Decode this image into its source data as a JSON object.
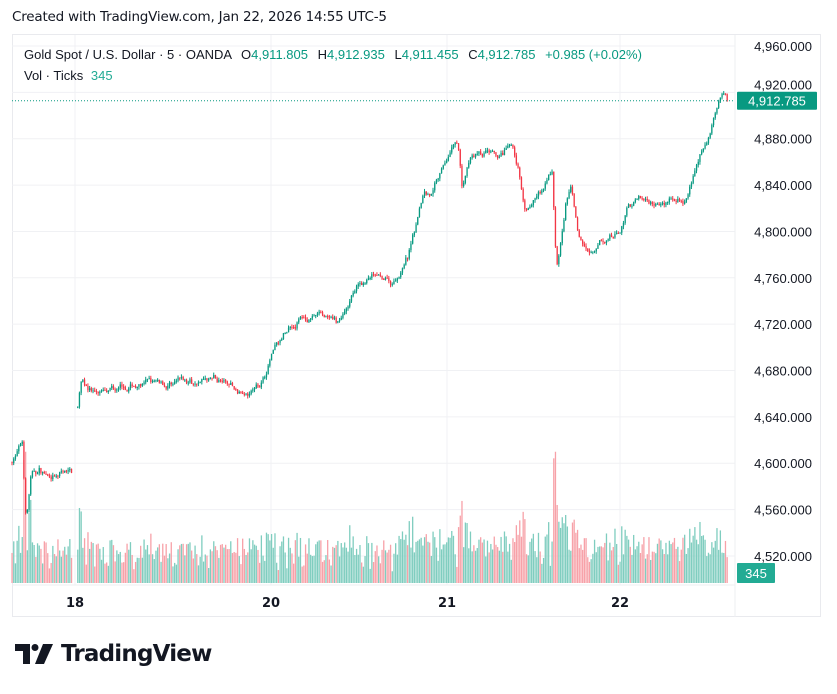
{
  "header": {
    "created_text": "Created with TradingView.com, Jan 22, 2026 14:55 UTC-5"
  },
  "legend": {
    "symbol": "Gold Spot / U.S. Dollar · 5 · OANDA",
    "o_label": "O",
    "o_value": "4,911.805",
    "h_label": "H",
    "h_value": "4,912.935",
    "l_label": "L",
    "l_value": "4,911.455",
    "c_label": "C",
    "c_value": "4,912.785",
    "change": "+0.985 (+0.02%)",
    "vol_label": "Vol · Ticks",
    "vol_value": "345"
  },
  "logo": {
    "text": "TradingView"
  },
  "colors": {
    "up": "#089981",
    "down": "#f23645",
    "vol_up": "#7fcdbf",
    "vol_down": "#f7a1a8",
    "grid": "#f0f1f4",
    "last_price_bg": "#089981",
    "last_vol_bg": "#22ab94"
  },
  "chart_data": {
    "type": "candlestick",
    "symbol": "Gold Spot / U.S. Dollar",
    "interval": "5",
    "y_ticks": [
      "4,520.000",
      "4,560.000",
      "4,600.000",
      "4,640.000",
      "4,680.000",
      "4,720.000",
      "4,760.000",
      "4,800.000",
      "4,840.000",
      "4,880.000",
      "4,920.000",
      "4,960.000"
    ],
    "y_tick_values": [
      4520,
      4560,
      4600,
      4640,
      4680,
      4720,
      4760,
      4800,
      4840,
      4880,
      4920,
      4960
    ],
    "ylim": [
      4500,
      4975
    ],
    "x_ticks": [
      {
        "label": "18",
        "time": "2026-01-18T18:00"
      },
      {
        "label": "20",
        "time": "2026-01-20T00:00"
      },
      {
        "label": "21",
        "time": "2026-01-21T00:00"
      },
      {
        "label": "22",
        "time": "2026-01-22T00:00"
      }
    ],
    "grid": true,
    "last_price": 4912.785,
    "last_price_label": "4,912.785",
    "last_volume": 345,
    "last_volume_label": "345",
    "price_path_approx": [
      [
        "2026-01-16T09:00",
        4601
      ],
      [
        "2026-01-16T10:20",
        4616
      ],
      [
        "2026-01-16T10:50",
        4551
      ],
      [
        "2026-01-16T11:30",
        4590
      ],
      [
        "2026-01-16T12:40",
        4594
      ],
      [
        "2026-01-16T14:40",
        4585
      ],
      [
        "2026-01-16T16:55",
        4594
      ],
      [
        "2026-01-18T18:25",
        4648
      ],
      [
        "2026-01-18T19:00",
        4674
      ],
      [
        "2026-01-18T21:20",
        4659
      ],
      [
        "2026-01-19T02:40",
        4667
      ],
      [
        "2026-01-19T10:10",
        4669
      ],
      [
        "2026-01-19T15:30",
        4674
      ],
      [
        "2026-01-19T19:20",
        4661
      ],
      [
        "2026-01-19T22:40",
        4672
      ],
      [
        "2026-01-20T00:30",
        4702
      ],
      [
        "2026-01-20T04:00",
        4724
      ],
      [
        "2026-01-20T06:40",
        4728
      ],
      [
        "2026-01-20T09:10",
        4719
      ],
      [
        "2026-01-20T10:50",
        4745
      ],
      [
        "2026-01-20T13:50",
        4762
      ],
      [
        "2026-01-20T16:30",
        4754
      ],
      [
        "2026-01-20T18:40",
        4777
      ],
      [
        "2026-01-20T20:00",
        4814
      ],
      [
        "2026-01-20T20:50",
        4836
      ],
      [
        "2026-01-20T22:00",
        4836
      ],
      [
        "2026-01-20T23:20",
        4857
      ],
      [
        "2026-01-21T00:40",
        4872
      ],
      [
        "2026-01-21T01:30",
        4879
      ],
      [
        "2026-01-21T02:05",
        4840
      ],
      [
        "2026-01-21T03:10",
        4862
      ],
      [
        "2026-01-21T05:15",
        4866
      ],
      [
        "2026-01-21T07:20",
        4862
      ],
      [
        "2026-01-21T09:00",
        4870
      ],
      [
        "2026-01-21T09:50",
        4853
      ],
      [
        "2026-01-21T10:50",
        4818
      ],
      [
        "2026-01-21T12:15",
        4831
      ],
      [
        "2026-01-21T13:30",
        4836
      ],
      [
        "2026-01-21T14:35",
        4849
      ],
      [
        "2026-01-21T15:10",
        4767
      ],
      [
        "2026-01-21T15:40",
        4784
      ],
      [
        "2026-01-21T16:30",
        4827
      ],
      [
        "2026-01-21T17:10",
        4836
      ],
      [
        "2026-01-21T18:20",
        4793
      ],
      [
        "2026-01-21T19:15",
        4788
      ],
      [
        "2026-01-21T20:00",
        4784
      ],
      [
        "2026-01-21T21:05",
        4793
      ],
      [
        "2026-01-21T21:55",
        4788
      ],
      [
        "2026-01-22T00:00",
        4797
      ],
      [
        "2026-01-22T01:00",
        4823
      ],
      [
        "2026-01-22T02:45",
        4831
      ],
      [
        "2026-01-22T04:50",
        4827
      ],
      [
        "2026-01-22T07:00",
        4829
      ],
      [
        "2026-01-22T09:00",
        4823
      ],
      [
        "2026-01-22T10:25",
        4849
      ],
      [
        "2026-01-22T11:05",
        4862
      ],
      [
        "2026-01-22T12:15",
        4879
      ],
      [
        "2026-01-22T13:05",
        4900
      ],
      [
        "2026-01-22T13:55",
        4918
      ],
      [
        "2026-01-22T14:30",
        4920
      ],
      [
        "2026-01-22T14:55",
        4912.785
      ]
    ]
  }
}
